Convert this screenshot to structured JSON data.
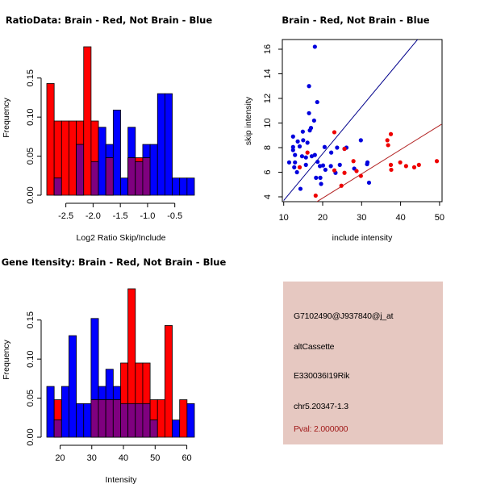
{
  "chart_data": [
    {
      "type": "bar",
      "subtype": "overlaid-histogram",
      "title": "RatioData: Brain - Red, Not Brain - Blue",
      "xlabel": "Log2 Ratio Skip/Include",
      "ylabel": "Frequency",
      "xlim": [
        -2.85,
        -0.14
      ],
      "ylim": [
        0,
        0.19
      ],
      "xticks": [
        -2.5,
        -2.0,
        -1.5,
        -1.0,
        -0.5
      ],
      "xtick_labels": [
        "-2.5",
        "-2.0",
        "-1.5",
        "-1.0",
        "-0.5"
      ],
      "yticks": [
        0.0,
        0.05,
        0.1,
        0.15
      ],
      "ytick_labels": [
        "0.00",
        "0.05",
        "0.10",
        "0.15"
      ],
      "bin_count": 20,
      "series": [
        {
          "name": "Brain",
          "color": "#ff0000",
          "values": [
            0.143,
            0.095,
            0.095,
            0.095,
            0.095,
            0.19,
            0.095,
            0,
            0.048,
            0,
            0,
            0.048,
            0.048,
            0.048,
            0,
            0,
            0,
            0,
            0,
            0
          ]
        },
        {
          "name": "Not Brain",
          "color": "#0000ff",
          "values": [
            0,
            0.022,
            0,
            0,
            0.065,
            0,
            0.043,
            0.087,
            0.065,
            0.109,
            0.022,
            0.087,
            0.043,
            0.065,
            0.065,
            0.13,
            0.13,
            0.022,
            0.022,
            0.022
          ]
        }
      ],
      "overlap_color": "#7f007f"
    },
    {
      "type": "scatter",
      "title": "Brain - Red, Not Brain - Blue",
      "xlabel": "include intensity",
      "ylabel": "skip intensity",
      "xlim": [
        10,
        50.5
      ],
      "ylim": [
        3.6,
        16.8
      ],
      "xticks": [
        10,
        20,
        30,
        40,
        50
      ],
      "yticks": [
        4,
        6,
        8,
        10,
        12,
        14,
        16
      ],
      "series": [
        {
          "name": "Not Brain",
          "color": "#0000dd",
          "points": [
            [
              18.0,
              16.2
            ],
            [
              16.5,
              13.0
            ],
            [
              18.6,
              11.7
            ],
            [
              16.5,
              10.8
            ],
            [
              17.8,
              10.2
            ],
            [
              17.0,
              9.6
            ],
            [
              16.7,
              9.4
            ],
            [
              14.9,
              9.3
            ],
            [
              12.4,
              8.9
            ],
            [
              15.0,
              8.6
            ],
            [
              13.6,
              8.5
            ],
            [
              16.1,
              8.4
            ],
            [
              12.4,
              8.05
            ],
            [
              14.1,
              8.1
            ],
            [
              12.4,
              7.8
            ],
            [
              12.9,
              7.4
            ],
            [
              14.7,
              7.3
            ],
            [
              15.7,
              7.2
            ],
            [
              17.2,
              7.3
            ],
            [
              18.0,
              7.4
            ],
            [
              20.5,
              8.05
            ],
            [
              22.2,
              7.6
            ],
            [
              23.7,
              8.0
            ],
            [
              26.1,
              8.0
            ],
            [
              25.6,
              7.9
            ],
            [
              29.8,
              8.6
            ],
            [
              11.4,
              6.8
            ],
            [
              12.9,
              6.8
            ],
            [
              15.7,
              6.6
            ],
            [
              18.7,
              6.85
            ],
            [
              19.3,
              6.5
            ],
            [
              20.1,
              6.55
            ],
            [
              20.7,
              6.2
            ],
            [
              22.1,
              6.5
            ],
            [
              24.4,
              6.6
            ],
            [
              12.7,
              6.4
            ],
            [
              13.4,
              6.0
            ],
            [
              23.3,
              5.95
            ],
            [
              28.1,
              6.3
            ],
            [
              31.5,
              6.8
            ],
            [
              18.3,
              5.55
            ],
            [
              19.4,
              5.55
            ],
            [
              19.6,
              5.05
            ],
            [
              31.9,
              5.15
            ],
            [
              14.3,
              4.65
            ],
            [
              31.4,
              6.65
            ]
          ]
        },
        {
          "name": "Brain",
          "color": "#ee0000",
          "points": [
            [
              23.0,
              9.25
            ],
            [
              37.5,
              9.1
            ],
            [
              36.6,
              8.6
            ],
            [
              36.8,
              8.2
            ],
            [
              25.6,
              7.9
            ],
            [
              16.1,
              7.6
            ],
            [
              27.9,
              6.9
            ],
            [
              37.5,
              6.6
            ],
            [
              37.6,
              6.2
            ],
            [
              39.9,
              6.8
            ],
            [
              41.4,
              6.5
            ],
            [
              43.5,
              6.4
            ],
            [
              44.7,
              6.6
            ],
            [
              49.3,
              6.9
            ],
            [
              23.0,
              6.15
            ],
            [
              25.6,
              5.95
            ],
            [
              28.7,
              6.1
            ],
            [
              29.8,
              5.7
            ],
            [
              24.8,
              4.9
            ],
            [
              18.2,
              4.1
            ],
            [
              14.1,
              6.4
            ]
          ]
        }
      ],
      "lines": [
        {
          "name": "Not Brain fit",
          "color": "#00008b",
          "from": [
            10,
            3.7
          ],
          "to": [
            44.4,
            16.8
          ]
        },
        {
          "name": "Brain fit",
          "color": "#b22222",
          "from": [
            18.5,
            3.6
          ],
          "to": [
            50.5,
            9.9
          ]
        }
      ]
    },
    {
      "type": "bar",
      "subtype": "overlaid-histogram",
      "title": "Gene Itensity: Brain - Red, Not Brain - Blue",
      "xlabel": "Intensity",
      "ylabel": "Frequency",
      "xlim": [
        15.8,
        62.4
      ],
      "ylim": [
        0,
        0.19
      ],
      "xticks": [
        20,
        30,
        40,
        50,
        60
      ],
      "xtick_labels": [
        "20",
        "30",
        "40",
        "50",
        "60"
      ],
      "yticks": [
        0.0,
        0.05,
        0.1,
        0.15
      ],
      "ytick_labels": [
        "0.00",
        "0.05",
        "0.10",
        "0.15"
      ],
      "bin_count": 20,
      "series": [
        {
          "name": "Brain",
          "color": "#ff0000",
          "values": [
            0,
            0.048,
            0,
            0,
            0,
            0,
            0.048,
            0.048,
            0.048,
            0.048,
            0.095,
            0.19,
            0.095,
            0.095,
            0.048,
            0.048,
            0.143,
            0,
            0.048,
            0
          ]
        },
        {
          "name": "Not Brain",
          "color": "#0000ff",
          "values": [
            0.065,
            0.022,
            0.065,
            0.13,
            0.043,
            0.043,
            0.152,
            0.065,
            0.087,
            0.065,
            0.043,
            0.043,
            0.043,
            0.043,
            0.022,
            0,
            0,
            0.022,
            0,
            0.043
          ]
        }
      ],
      "overlap_color": "#7f007f"
    }
  ],
  "info_panel": {
    "probe_id": "G7102490@J937840@j_at",
    "event_type": "altCassette",
    "gene_name": "E330036I19Rik",
    "location": "chr5.20347-1.3",
    "pval": "Pval: 2.000000",
    "background": "#e6c8c1",
    "pval_color": "#a01818"
  }
}
